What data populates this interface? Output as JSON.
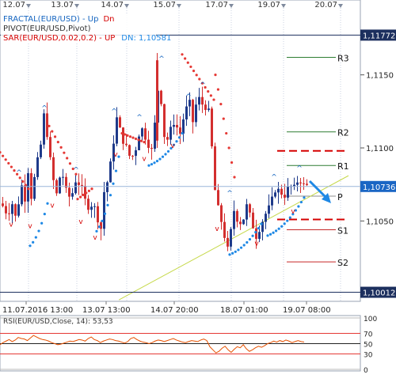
{
  "chart_data": [
    {
      "type": "candlestick",
      "title": "",
      "indicator_labels": [
        {
          "name": "fractal",
          "text": "FRACTAL(EUR/USD)  -  ",
          "up_text": "Up",
          "dn_text": "Dn",
          "up_color": "#1565c0",
          "dn_color": "#d50000"
        },
        {
          "name": "pivot",
          "text": "PIVOT(EUR/USD,Pivot)"
        },
        {
          "name": "sar",
          "text": "SAR(EUR/USD,0.02,0.2)  -  UP",
          "dn_text": "DN: 1,10581",
          "color": "#d50000",
          "dn_color": "#1e88e5"
        }
      ],
      "top_date_labels": [
        "12.07",
        "13.07",
        "14.07",
        "15.07",
        "17.07",
        "19.07",
        "20.07"
      ],
      "x_tick_labels": [
        "11.07.2016 13:00",
        "13.07 13:00",
        "14.07 20:00",
        "18.07 01:00",
        "19.07 08:00"
      ],
      "y_tick_labels": [
        "1,1150",
        "1,1100",
        "1,1050"
      ],
      "ylim": [
        1.0995,
        1.1185
      ],
      "price_tags": [
        {
          "label": "1,11772",
          "value": 1.11772,
          "style": "dark"
        },
        {
          "label": "1,10736",
          "value": 1.10736,
          "style": "blue"
        },
        {
          "label": "1,10012",
          "value": 1.10012,
          "style": "dark"
        }
      ],
      "pivot_levels": [
        {
          "name": "R3",
          "value": 1.1162,
          "color": "#2e7d32"
        },
        {
          "name": "R2",
          "value": 1.1111,
          "color": "#2e7d32"
        },
        {
          "name": "R1",
          "value": 1.1088,
          "color": "#2e7d32"
        },
        {
          "name": "P",
          "value": 1.1067,
          "color": "#8e8e8e"
        },
        {
          "name": "S1",
          "value": 1.1044,
          "color": "#c62828"
        },
        {
          "name": "S2",
          "value": 1.1022,
          "color": "#c62828"
        }
      ],
      "resistance_dashed_lines": [
        1.1098,
        1.1051
      ],
      "trendline": {
        "from": [
          0.33,
          1.0996
        ],
        "to": [
          1.0,
          1.1081
        ],
        "color": "#c6d94a"
      },
      "current_price": 1.10736,
      "colors": {
        "up": "#1e3a8a",
        "down": "#d32f2f",
        "sar_up": "#1e88e5",
        "sar_down": "#e53935"
      }
    },
    {
      "type": "line",
      "title": "RSI(EUR/USD,Close, 14): 53,53",
      "ylim": [
        0,
        100
      ],
      "y_tick_labels": [
        "100",
        "70",
        "50",
        "30",
        "0"
      ],
      "levels": [
        100,
        70,
        50,
        30,
        0
      ],
      "series": [
        {
          "name": "RSI",
          "color": "#e65100",
          "values": [
            48,
            52,
            55,
            58,
            54,
            57,
            62,
            60,
            59,
            56,
            61,
            66,
            63,
            60,
            58,
            57,
            55,
            52,
            50,
            48,
            49,
            51,
            53,
            55,
            54,
            56,
            58,
            57,
            55,
            60,
            63,
            58,
            56,
            52,
            55,
            57,
            59,
            58,
            56,
            55,
            53,
            51,
            54,
            60,
            62,
            58,
            55,
            53,
            52,
            50,
            52,
            55,
            57,
            56,
            54,
            56,
            58,
            60,
            57,
            55,
            53,
            52,
            54,
            56,
            55,
            54,
            57,
            59,
            56,
            44,
            38,
            32,
            35,
            41,
            45,
            38,
            33,
            39,
            44,
            42,
            48,
            40,
            35,
            38,
            42,
            45,
            43,
            46,
            50,
            52,
            55,
            53,
            56,
            54,
            57,
            55,
            52,
            54,
            56,
            54,
            53
          ]
        }
      ]
    }
  ]
}
